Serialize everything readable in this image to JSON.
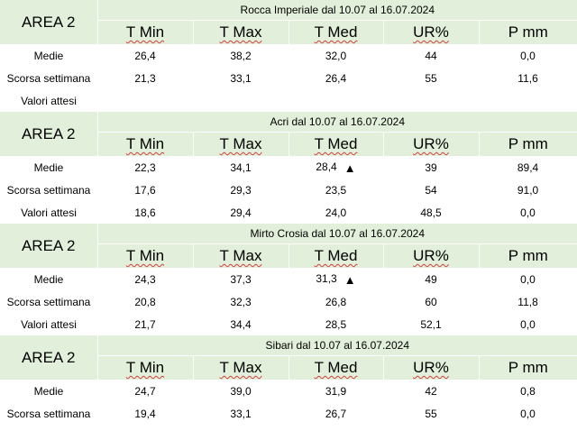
{
  "sections": [
    {
      "area": "AREA 2",
      "title": "Rocca Imperiale  dal 10.07 al 16.07.2024",
      "headers": [
        "T Min",
        "T Max",
        "T Med",
        "UR%",
        "P mm"
      ],
      "rows": [
        {
          "label": "Medie",
          "values": [
            "26,4",
            "38,2",
            "32,0",
            "44",
            "0,0"
          ],
          "marker": ""
        },
        {
          "label": "Scorsa settimana",
          "values": [
            "21,3",
            "33,1",
            "26,4",
            "55",
            "11,6"
          ],
          "marker": ""
        },
        {
          "label": "Valori attesi",
          "values": [
            "",
            "",
            "",
            "",
            ""
          ],
          "marker": ""
        }
      ]
    },
    {
      "area": "AREA 2",
      "title": "Acri dal 10.07 al 16.07.2024",
      "headers": [
        "T Min",
        "T Max",
        "T Med",
        "UR%",
        "P mm"
      ],
      "rows": [
        {
          "label": "Medie",
          "values": [
            "22,3",
            "34,1",
            "28,4",
            "39",
            "89,4"
          ],
          "marker": "▲"
        },
        {
          "label": "Scorsa settimana",
          "values": [
            "17,6",
            "29,3",
            "23,5",
            "54",
            "91,0"
          ],
          "marker": ""
        },
        {
          "label": "Valori attesi",
          "values": [
            "18,6",
            "29,4",
            "24,0",
            "48,5",
            "0,0"
          ],
          "marker": ""
        }
      ]
    },
    {
      "area": "AREA 2",
      "title": "Mirto Crosia dal 10.07 al 16.07.2024",
      "headers": [
        "T Min",
        "T Max",
        "T Med",
        "UR%",
        "P mm"
      ],
      "rows": [
        {
          "label": "Medie",
          "values": [
            "24,3",
            "37,3",
            "31,3",
            "49",
            "0,0"
          ],
          "marker": "▲"
        },
        {
          "label": "Scorsa settimana",
          "values": [
            "20,8",
            "32,3",
            "26,8",
            "60",
            "11,8"
          ],
          "marker": ""
        },
        {
          "label": "Valori attesi",
          "values": [
            "21,7",
            "34,4",
            "28,5",
            "52,1",
            "0,0"
          ],
          "marker": ""
        }
      ]
    },
    {
      "area": "AREA 2",
      "title": "Sibari dal 10.07 al 16.07.2024",
      "headers": [
        "T Min",
        "T Max",
        "T Med",
        "UR%",
        "P mm"
      ],
      "rows": [
        {
          "label": "Medie",
          "values": [
            "24,7",
            "39,0",
            "31,9",
            "42",
            "0,8"
          ],
          "marker": ""
        },
        {
          "label": "Scorsa settimana",
          "values": [
            "19,4",
            "33,1",
            "26,7",
            "55",
            "0,0"
          ],
          "marker": ""
        }
      ]
    }
  ],
  "colors": {
    "header_bg": "#e2efda",
    "spell_underline": "#d04040"
  }
}
